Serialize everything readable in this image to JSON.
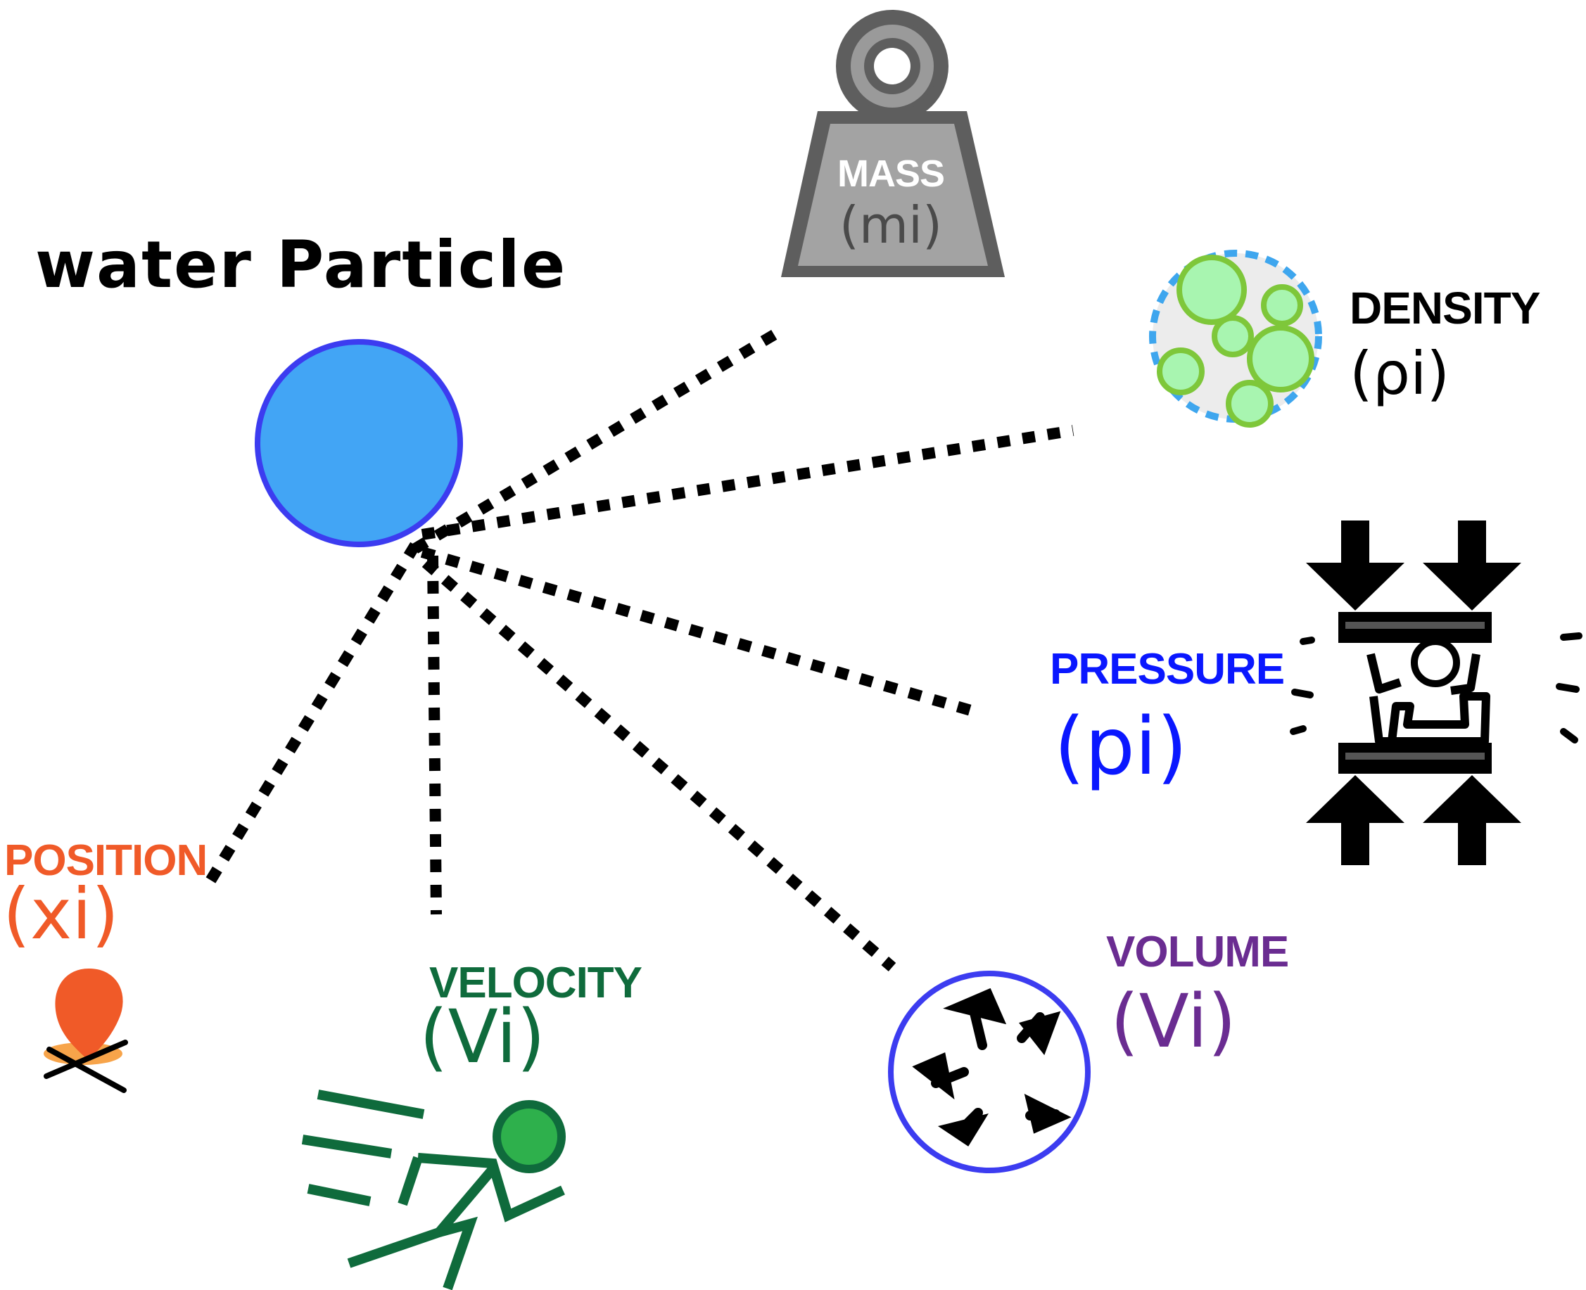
{
  "title": "water Particle",
  "colors": {
    "particle_fill": "#42a5f5",
    "particle_stroke": "#3c3cf0",
    "mass": "#ffffff",
    "density": "#000000",
    "pressure": "#0a17ff",
    "position": "#f05a28",
    "velocity": "#0f6b3c",
    "volume": "#6a2c91"
  },
  "properties": [
    {
      "key": "mass",
      "label": "MASS",
      "symbol": "(mi)",
      "icon": "weight-icon"
    },
    {
      "key": "density",
      "label": "DENSITY",
      "symbol": "(ρi)",
      "icon": "bubbles-icon"
    },
    {
      "key": "pressure",
      "label": "PRESSURE",
      "symbol": "(pi)",
      "icon": "press-icon"
    },
    {
      "key": "volume",
      "label": "VOLUME",
      "symbol": "(Vi)",
      "icon": "volume-sphere-icon"
    },
    {
      "key": "velocity",
      "label": "VELOCITY",
      "symbol": "(Vi)",
      "icon": "running-person-icon"
    },
    {
      "key": "position",
      "label": "POSITION",
      "symbol": "(xi)",
      "icon": "map-pin-icon"
    }
  ]
}
